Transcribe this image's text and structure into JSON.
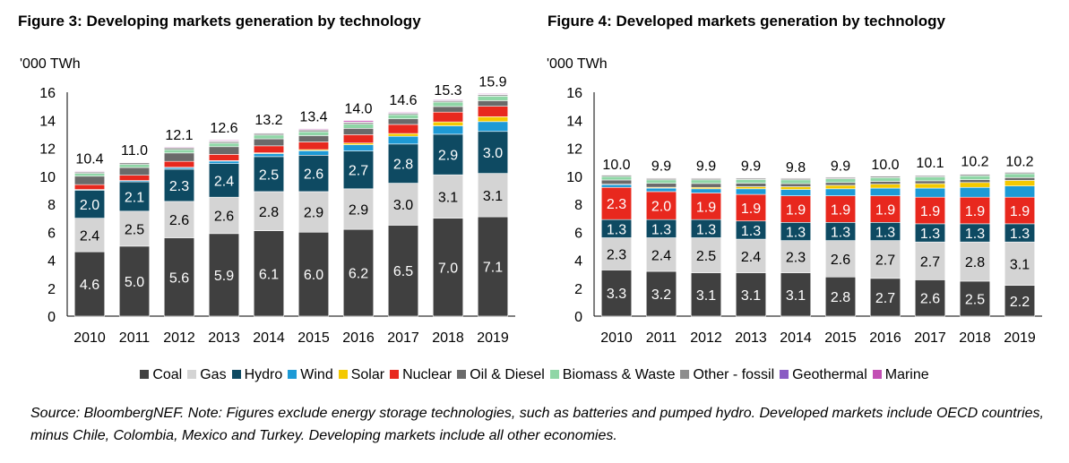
{
  "figures": {
    "left_title": "Figure 3:  Developing markets generation by technology",
    "right_title": "Figure 4:  Developed markets generation by technology"
  },
  "legend": [
    {
      "label": "Coal",
      "color": "#404040"
    },
    {
      "label": "Gas",
      "color": "#d4d4d4"
    },
    {
      "label": "Hydro",
      "color": "#0e4a62"
    },
    {
      "label": "Wind",
      "color": "#1d9ad6"
    },
    {
      "label": "Solar",
      "color": "#f4c900"
    },
    {
      "label": "Nuclear",
      "color": "#e8281e"
    },
    {
      "label": "Oil & Diesel",
      "color": "#6a6a6a"
    },
    {
      "label": "Biomass & Waste",
      "color": "#8fd6a6"
    },
    {
      "label": "Other - fossil",
      "color": "#8e8e8e"
    },
    {
      "label": "Geothermal",
      "color": "#8a5cc4"
    },
    {
      "label": "Marine",
      "color": "#c34fb4"
    }
  ],
  "note": "Source: BloombergNEF. Note: Figures exclude energy storage technologies, such as batteries and pumped hydro. Developed markets include OECD countries, minus Chile, Colombia, Mexico and Turkey. Developing markets include all other economies.",
  "chart_data": [
    {
      "type": "bar",
      "stacked": true,
      "title": "Figure 3:  Developing markets generation by technology",
      "ylabel": "'000 TWh",
      "ylim": [
        0,
        16
      ],
      "yticks": [
        0,
        2,
        4,
        6,
        8,
        10,
        12,
        14,
        16
      ],
      "categories": [
        "2010",
        "2011",
        "2012",
        "2013",
        "2014",
        "2015",
        "2016",
        "2017",
        "2018",
        "2019"
      ],
      "totals": [
        10.4,
        11.0,
        12.1,
        12.6,
        13.2,
        13.4,
        14.0,
        14.6,
        15.3,
        15.9
      ],
      "series": [
        {
          "name": "Coal",
          "values": [
            4.6,
            5.0,
            5.6,
            5.9,
            6.1,
            6.0,
            6.2,
            6.5,
            7.0,
            7.1
          ],
          "labeled": true
        },
        {
          "name": "Gas",
          "values": [
            2.4,
            2.5,
            2.6,
            2.6,
            2.8,
            2.9,
            2.9,
            3.0,
            3.1,
            3.1
          ],
          "labeled": true
        },
        {
          "name": "Hydro",
          "values": [
            2.0,
            2.1,
            2.3,
            2.4,
            2.5,
            2.6,
            2.7,
            2.8,
            2.9,
            3.0
          ],
          "labeled": true
        },
        {
          "name": "Wind",
          "values": [
            0.05,
            0.08,
            0.12,
            0.18,
            0.22,
            0.32,
            0.45,
            0.55,
            0.6,
            0.7
          ],
          "labeled": false
        },
        {
          "name": "Solar",
          "values": [
            0.0,
            0.01,
            0.02,
            0.03,
            0.05,
            0.08,
            0.12,
            0.2,
            0.28,
            0.35
          ],
          "labeled": false
        },
        {
          "name": "Nuclear",
          "values": [
            0.35,
            0.38,
            0.42,
            0.45,
            0.5,
            0.55,
            0.6,
            0.65,
            0.7,
            0.75
          ],
          "labeled": false
        },
        {
          "name": "Oil & Diesel",
          "values": [
            0.6,
            0.55,
            0.6,
            0.55,
            0.5,
            0.45,
            0.45,
            0.4,
            0.4,
            0.4
          ],
          "labeled": false
        },
        {
          "name": "Biomass & Waste",
          "values": [
            0.2,
            0.22,
            0.24,
            0.25,
            0.27,
            0.28,
            0.3,
            0.3,
            0.32,
            0.32
          ],
          "labeled": false
        },
        {
          "name": "Other - fossil",
          "values": [
            0.1,
            0.12,
            0.12,
            0.12,
            0.12,
            0.12,
            0.12,
            0.1,
            0.1,
            0.1
          ],
          "labeled": false
        },
        {
          "name": "Geothermal",
          "values": [
            0.04,
            0.04,
            0.04,
            0.04,
            0.04,
            0.04,
            0.04,
            0.05,
            0.05,
            0.05
          ],
          "labeled": false
        },
        {
          "name": "Marine",
          "values": [
            0.05,
            0.03,
            0.05,
            0.06,
            0.04,
            0.06,
            0.1,
            0.05,
            0.05,
            0.05
          ],
          "labeled": false
        }
      ]
    },
    {
      "type": "bar",
      "stacked": true,
      "title": "Figure 4:  Developed markets generation by technology",
      "ylabel": "'000 TWh",
      "ylim": [
        0,
        16
      ],
      "yticks": [
        0,
        2,
        4,
        6,
        8,
        10,
        12,
        14,
        16
      ],
      "categories": [
        "2010",
        "2011",
        "2012",
        "2013",
        "2014",
        "2015",
        "2016",
        "2017",
        "2018",
        "2019"
      ],
      "totals": [
        10.0,
        9.9,
        9.9,
        9.9,
        9.8,
        9.9,
        10.0,
        10.1,
        10.2,
        10.2
      ],
      "series": [
        {
          "name": "Coal",
          "values": [
            3.3,
            3.2,
            3.1,
            3.1,
            3.1,
            2.8,
            2.7,
            2.6,
            2.5,
            2.2
          ],
          "labeled": true
        },
        {
          "name": "Gas",
          "values": [
            2.3,
            2.4,
            2.5,
            2.4,
            2.3,
            2.6,
            2.7,
            2.7,
            2.8,
            3.1
          ],
          "labeled": true
        },
        {
          "name": "Hydro",
          "values": [
            1.3,
            1.3,
            1.3,
            1.3,
            1.3,
            1.3,
            1.3,
            1.3,
            1.3,
            1.3
          ],
          "labeled": true
        },
        {
          "name": "Nuclear",
          "values": [
            2.3,
            2.0,
            1.9,
            1.9,
            1.9,
            1.9,
            1.9,
            1.9,
            1.9,
            1.9
          ],
          "labeled": true
        },
        {
          "name": "Wind",
          "values": [
            0.2,
            0.25,
            0.3,
            0.4,
            0.45,
            0.5,
            0.55,
            0.65,
            0.7,
            0.8
          ],
          "labeled": false
        },
        {
          "name": "Solar",
          "values": [
            0.03,
            0.06,
            0.1,
            0.15,
            0.2,
            0.25,
            0.28,
            0.32,
            0.35,
            0.4
          ],
          "labeled": false
        },
        {
          "name": "Oil & Diesel",
          "values": [
            0.3,
            0.28,
            0.28,
            0.25,
            0.22,
            0.2,
            0.2,
            0.2,
            0.2,
            0.2
          ],
          "labeled": false
        },
        {
          "name": "Biomass & Waste",
          "values": [
            0.25,
            0.25,
            0.26,
            0.26,
            0.27,
            0.27,
            0.27,
            0.28,
            0.28,
            0.28
          ],
          "labeled": false
        },
        {
          "name": "Other - fossil",
          "values": [
            0.1,
            0.1,
            0.1,
            0.1,
            0.1,
            0.1,
            0.1,
            0.1,
            0.1,
            0.1
          ],
          "labeled": false
        },
        {
          "name": "Geothermal",
          "values": [
            0.04,
            0.04,
            0.04,
            0.04,
            0.04,
            0.04,
            0.04,
            0.04,
            0.04,
            0.04
          ],
          "labeled": false
        },
        {
          "name": "Marine",
          "values": [
            0.01,
            0.01,
            0.01,
            0.01,
            0.01,
            0.01,
            0.01,
            0.01,
            0.01,
            0.01
          ],
          "labeled": false
        }
      ]
    }
  ]
}
